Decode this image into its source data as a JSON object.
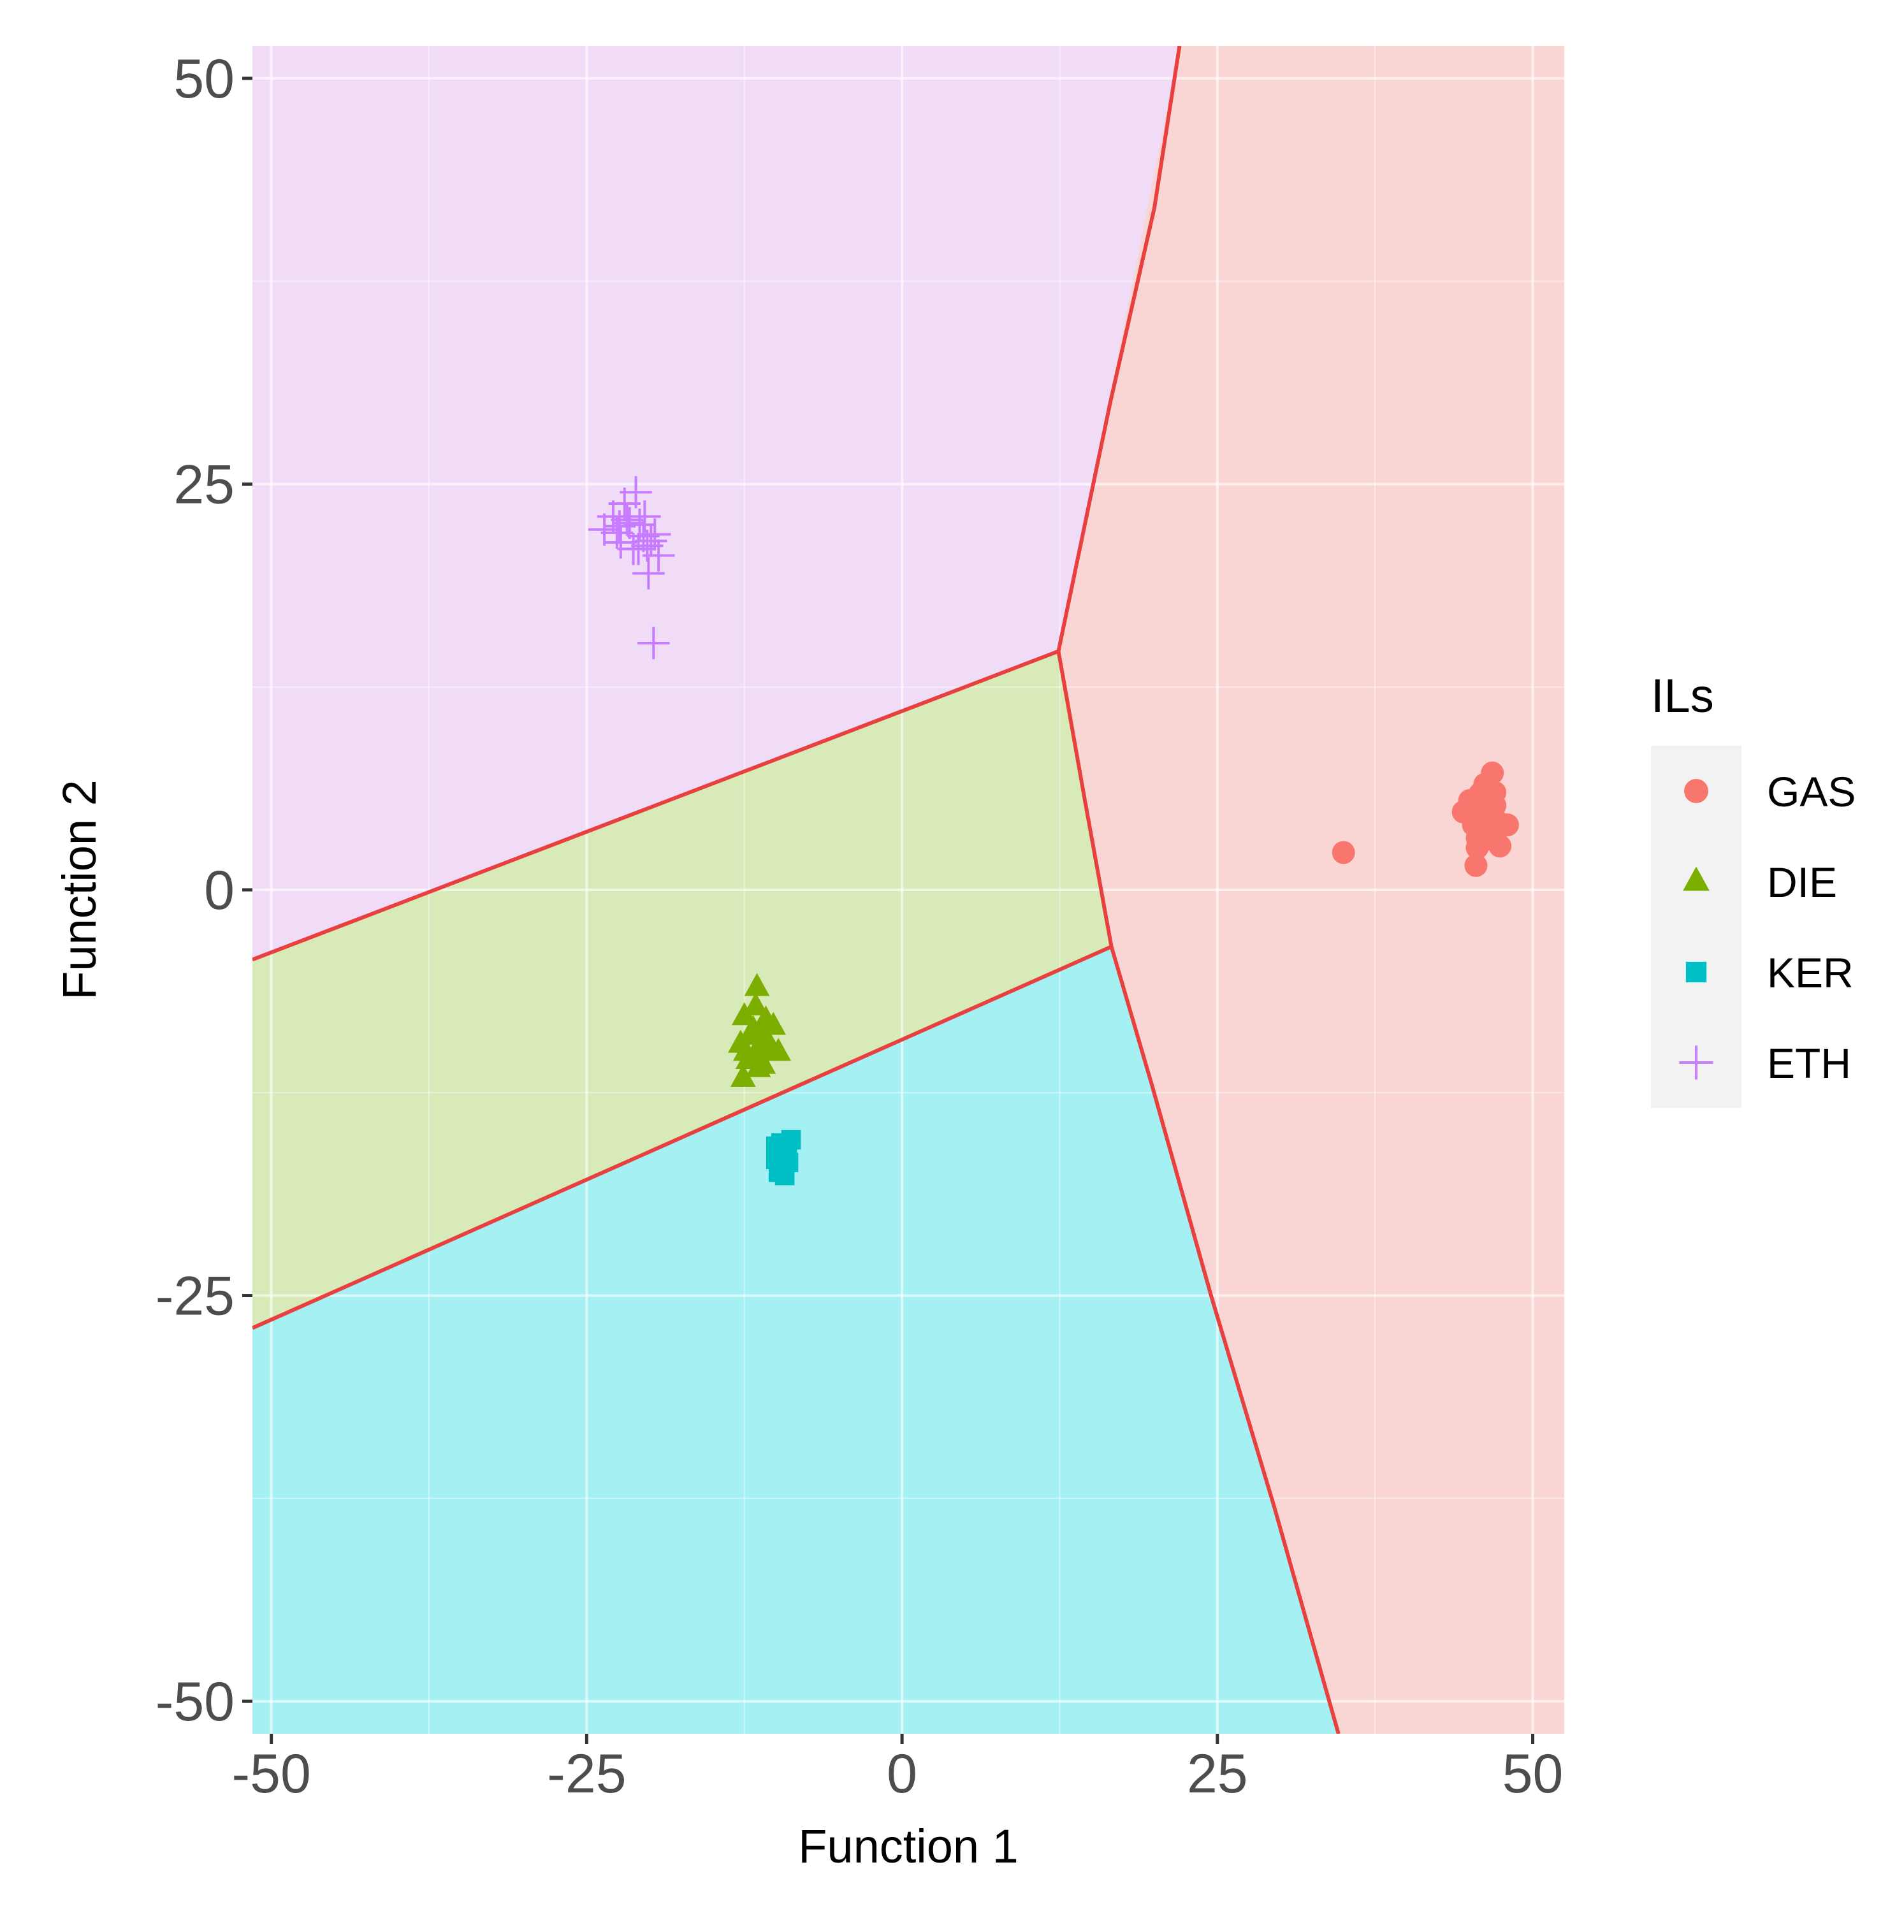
{
  "chart_data": {
    "type": "scatter",
    "title": "",
    "xlabel": "Function 1",
    "ylabel": "Function 2",
    "xlim": [
      -51.5,
      52.5
    ],
    "ylim": [
      -52,
      52
    ],
    "x_ticks": [
      -50,
      -25,
      0,
      25,
      50
    ],
    "y_ticks": [
      -50,
      -25,
      0,
      25,
      50
    ],
    "grid": true,
    "legend": {
      "title": "ILs",
      "position": "right"
    },
    "regions": [
      {
        "name": "GAS",
        "color": "#f8766d",
        "fill": "#f9d6d3",
        "polygon": [
          [
            22.0,
            52
          ],
          [
            12.4,
            14.7
          ],
          [
            16.6,
            -3.5
          ],
          [
            34.6,
            -52
          ],
          [
            52.5,
            -52
          ],
          [
            52.5,
            52
          ]
        ]
      },
      {
        "name": "ETH",
        "color": "#c77cff",
        "fill": "#f1dcf8",
        "polygon": [
          [
            -51.5,
            52
          ],
          [
            22.0,
            52
          ],
          [
            12.4,
            14.7
          ],
          [
            -51.5,
            -4.3
          ]
        ]
      },
      {
        "name": "DIE",
        "color": "#7cae00",
        "fill": "#d7eab7",
        "polygon": [
          [
            -51.5,
            -4.3
          ],
          [
            12.4,
            14.7
          ],
          [
            16.6,
            -3.5
          ],
          [
            -51.5,
            -27.0
          ]
        ]
      },
      {
        "name": "KER",
        "color": "#00bfc4",
        "fill": "#a5f0f2",
        "polygon": [
          [
            -51.5,
            -27.0
          ],
          [
            16.6,
            -3.5
          ],
          [
            34.6,
            -52
          ],
          [
            -51.5,
            -52
          ]
        ]
      }
    ],
    "boundary_color": "#e8403f",
    "boundaries": [
      {
        "points": [
          [
            22.0,
            52
          ],
          [
            20.0,
            42
          ],
          [
            16.5,
            30
          ],
          [
            12.4,
            14.7
          ]
        ]
      },
      {
        "points": [
          [
            12.4,
            14.7
          ],
          [
            14.5,
            5.5
          ],
          [
            16.6,
            -3.5
          ]
        ]
      },
      {
        "points": [
          [
            16.6,
            -3.5
          ],
          [
            19.8,
            -12
          ],
          [
            24.5,
            -25
          ],
          [
            29.5,
            -38
          ],
          [
            34.6,
            -52
          ]
        ]
      },
      {
        "points": [
          [
            -51.5,
            -4.3
          ],
          [
            12.4,
            14.7
          ]
        ]
      },
      {
        "points": [
          [
            -51.5,
            -27.0
          ],
          [
            16.6,
            -3.5
          ]
        ]
      }
    ],
    "series": [
      {
        "name": "GAS",
        "marker": "circle",
        "color": "#f8766d",
        "points": [
          [
            35.0,
            2.3
          ],
          [
            44.5,
            4.8
          ],
          [
            45.0,
            5.5
          ],
          [
            45.3,
            4.0
          ],
          [
            45.6,
            3.2
          ],
          [
            45.8,
            5.9
          ],
          [
            46.0,
            4.4
          ],
          [
            46.2,
            6.5
          ],
          [
            46.4,
            5.0
          ],
          [
            46.6,
            3.6
          ],
          [
            46.8,
            4.6
          ],
          [
            47.0,
            5.2
          ],
          [
            47.2,
            4.2
          ],
          [
            45.6,
            2.6
          ],
          [
            47.4,
            2.7
          ],
          [
            48.0,
            4.0
          ],
          [
            46.8,
            7.2
          ],
          [
            45.5,
            1.5
          ],
          [
            47.0,
            6.0
          ],
          [
            46.0,
            3.0
          ]
        ]
      },
      {
        "name": "DIE",
        "marker": "triangle",
        "color": "#7cae00",
        "points": [
          [
            -12.5,
            -7.8
          ],
          [
            -12.8,
            -9.5
          ],
          [
            -12.2,
            -10.5
          ],
          [
            -12.6,
            -11.6
          ],
          [
            -11.8,
            -8.6
          ],
          [
            -11.5,
            -6.0
          ],
          [
            -11.2,
            -9.5
          ],
          [
            -11.0,
            -10.8
          ],
          [
            -10.8,
            -8.0
          ],
          [
            -10.5,
            -9.8
          ],
          [
            -10.2,
            -8.4
          ],
          [
            -9.8,
            -10.0
          ],
          [
            -11.6,
            -7.2
          ],
          [
            -12.0,
            -9.0
          ],
          [
            -12.4,
            -10.0
          ],
          [
            -11.4,
            -11.0
          ],
          [
            -10.9,
            -9.0
          ],
          [
            -11.7,
            -10.2
          ]
        ]
      },
      {
        "name": "KER",
        "marker": "square",
        "color": "#00bfc4",
        "points": [
          [
            -10.0,
            -15.8
          ],
          [
            -10.0,
            -16.6
          ],
          [
            -9.8,
            -17.4
          ],
          [
            -9.6,
            -15.6
          ],
          [
            -9.5,
            -16.8
          ],
          [
            -9.3,
            -17.6
          ],
          [
            -9.1,
            -16.0
          ],
          [
            -9.0,
            -16.8
          ],
          [
            -8.8,
            -15.4
          ],
          [
            -9.4,
            -16.2
          ]
        ]
      },
      {
        "name": "ETH",
        "marker": "plus",
        "color": "#c77cff",
        "points": [
          [
            -23.6,
            22.2
          ],
          [
            -22.9,
            23.0
          ],
          [
            -22.6,
            22.0
          ],
          [
            -22.3,
            21.4
          ],
          [
            -22.0,
            23.8
          ],
          [
            -21.6,
            22.6
          ],
          [
            -21.3,
            21.0
          ],
          [
            -21.1,
            24.5
          ],
          [
            -20.8,
            22.5
          ],
          [
            -20.5,
            21.8
          ],
          [
            -20.2,
            21.2
          ],
          [
            -19.9,
            21.5
          ],
          [
            -19.6,
            21.9
          ],
          [
            -19.3,
            20.6
          ],
          [
            -20.1,
            19.5
          ],
          [
            -19.7,
            15.2
          ],
          [
            -21.8,
            22.8
          ],
          [
            -20.9,
            21.0
          ],
          [
            -22.4,
            22.4
          ],
          [
            -20.4,
            23.0
          ]
        ]
      }
    ]
  }
}
